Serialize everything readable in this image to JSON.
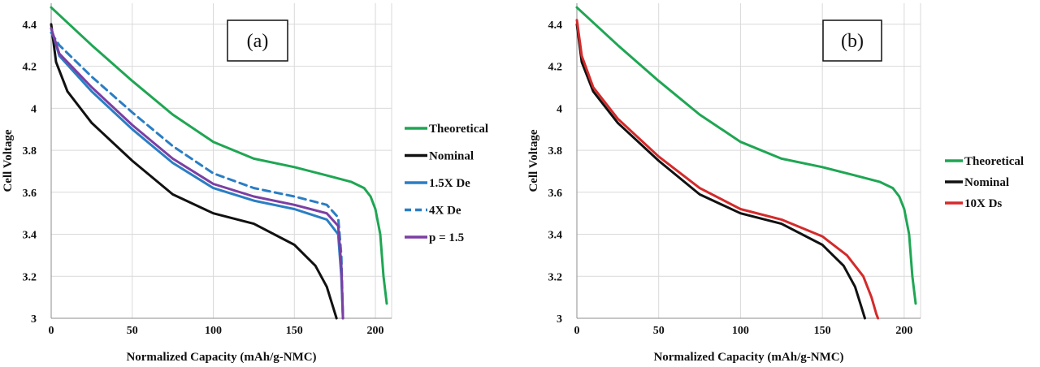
{
  "chart_data": [
    {
      "type": "line",
      "panel_label": "(a)",
      "xlabel": "Normalized Capacity (mAh/g-NMC)",
      "ylabel": "Cell Voltage",
      "xlim": [
        0,
        210
      ],
      "ylim": [
        3,
        4.5
      ],
      "xticks": [
        "0",
        "50",
        "100",
        "150",
        "200"
      ],
      "yticks": [
        "3",
        "3.2",
        "3.4",
        "3.6",
        "3.8",
        "4",
        "4.2",
        "4.4"
      ],
      "grid": true,
      "legend_position": "right",
      "series": [
        {
          "name": "Theoretical",
          "color": "#1fa653",
          "dash": false,
          "x": [
            0,
            25,
            50,
            75,
            100,
            125,
            150,
            170,
            185,
            193,
            197,
            200,
            203,
            205,
            207
          ],
          "y": [
            4.48,
            4.3,
            4.13,
            3.97,
            3.84,
            3.76,
            3.72,
            3.68,
            3.65,
            3.62,
            3.58,
            3.52,
            3.4,
            3.2,
            3.07
          ]
        },
        {
          "name": "Nominal",
          "color": "#111111",
          "dash": false,
          "x": [
            0,
            3,
            10,
            25,
            50,
            75,
            100,
            125,
            150,
            163,
            170,
            174,
            176
          ],
          "y": [
            4.4,
            4.22,
            4.08,
            3.93,
            3.75,
            3.59,
            3.5,
            3.45,
            3.35,
            3.25,
            3.15,
            3.05,
            3.0
          ]
        },
        {
          "name": "1.5X De",
          "color": "#2a7ec4",
          "dash": false,
          "x": [
            0,
            5,
            25,
            50,
            75,
            100,
            125,
            150,
            170,
            177,
            179,
            180
          ],
          "y": [
            4.38,
            4.25,
            4.08,
            3.9,
            3.74,
            3.62,
            3.56,
            3.52,
            3.47,
            3.4,
            3.2,
            3.0
          ]
        },
        {
          "name": "4X De",
          "color": "#2a7ec4",
          "dash": true,
          "x": [
            0,
            5,
            25,
            50,
            75,
            100,
            125,
            150,
            170,
            177,
            179,
            180
          ],
          "y": [
            4.36,
            4.3,
            4.15,
            3.98,
            3.82,
            3.69,
            3.62,
            3.58,
            3.54,
            3.48,
            3.3,
            3.0
          ]
        },
        {
          "name": "p = 1.5",
          "color": "#7b3fa3",
          "dash": false,
          "x": [
            0,
            5,
            25,
            50,
            75,
            100,
            125,
            150,
            170,
            177,
            179,
            180
          ],
          "y": [
            4.38,
            4.26,
            4.1,
            3.92,
            3.76,
            3.64,
            3.58,
            3.54,
            3.5,
            3.44,
            3.25,
            3.0
          ]
        }
      ]
    },
    {
      "type": "line",
      "panel_label": "(b)",
      "xlabel": "Normalized Capacity (mAh/g-NMC)",
      "ylabel": "Cell Voltage",
      "xlim": [
        0,
        210
      ],
      "ylim": [
        3,
        4.5
      ],
      "xticks": [
        "0",
        "50",
        "100",
        "150",
        "200"
      ],
      "yticks": [
        "3",
        "3.2",
        "3.4",
        "3.6",
        "3.8",
        "4",
        "4.2",
        "4.4"
      ],
      "grid": true,
      "legend_position": "right",
      "series": [
        {
          "name": "Theoretical",
          "color": "#1fa653",
          "dash": false,
          "x": [
            0,
            25,
            50,
            75,
            100,
            125,
            150,
            170,
            185,
            193,
            197,
            200,
            203,
            205,
            207
          ],
          "y": [
            4.48,
            4.3,
            4.13,
            3.97,
            3.84,
            3.76,
            3.72,
            3.68,
            3.65,
            3.62,
            3.58,
            3.52,
            3.4,
            3.2,
            3.07
          ]
        },
        {
          "name": "Nominal",
          "color": "#111111",
          "dash": false,
          "x": [
            0,
            3,
            10,
            25,
            50,
            75,
            100,
            125,
            150,
            163,
            170,
            174,
            176
          ],
          "y": [
            4.4,
            4.22,
            4.08,
            3.93,
            3.75,
            3.59,
            3.5,
            3.45,
            3.35,
            3.25,
            3.15,
            3.05,
            3.0
          ]
        },
        {
          "name": "10X Ds",
          "color": "#d42a2a",
          "dash": false,
          "x": [
            0,
            3,
            10,
            25,
            50,
            75,
            100,
            125,
            150,
            165,
            175,
            180,
            183,
            184
          ],
          "y": [
            4.42,
            4.25,
            4.1,
            3.95,
            3.77,
            3.62,
            3.52,
            3.47,
            3.39,
            3.3,
            3.2,
            3.1,
            3.02,
            3.0
          ]
        }
      ]
    }
  ]
}
